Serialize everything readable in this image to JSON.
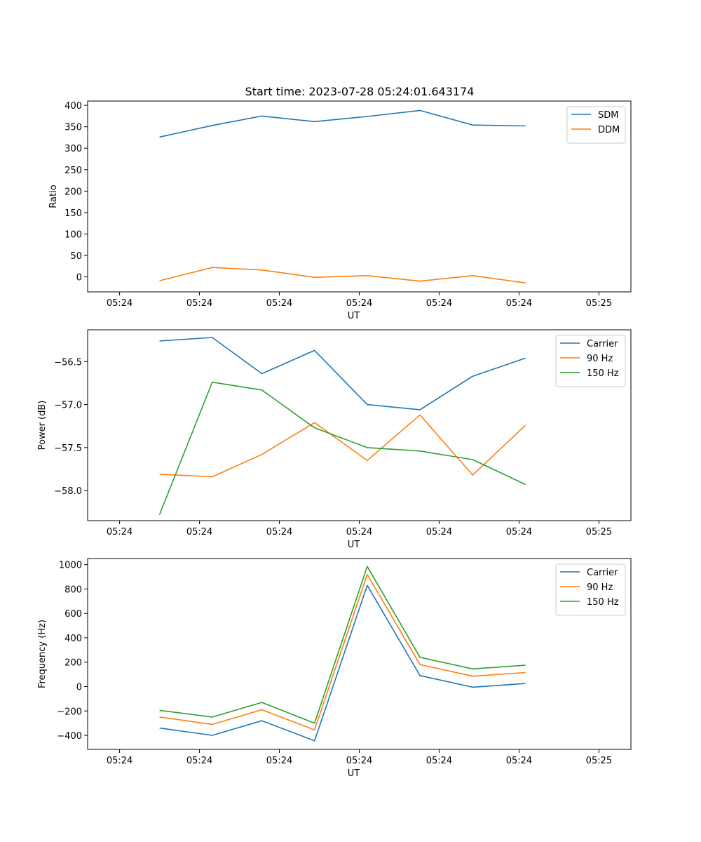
{
  "figure": {
    "title": "Start time: 2023-07-28 05:24:01.643174"
  },
  "colors": {
    "c0": "#1f77b4",
    "c1": "#ff7f0e",
    "c2": "#2ca02c"
  },
  "chart_data": [
    {
      "type": "line",
      "title": "Start time: 2023-07-28 05:24:01.643174",
      "xlabel": "UT",
      "ylabel": "Ratio",
      "xlim": [
        -0.35,
        1.35
      ],
      "x_ticks": [
        -0.25,
        0,
        0.25,
        0.5,
        0.75,
        1,
        1.25
      ],
      "x_tick_labels": [
        "05:24",
        "05:24",
        "05:24",
        "05:24",
        "05:24",
        "05:24",
        "05:25"
      ],
      "ylim": [
        -35,
        410
      ],
      "y_ticks": [
        0,
        50,
        100,
        150,
        200,
        250,
        300,
        350,
        400
      ],
      "y_tick_labels": [
        "0",
        "50",
        "100",
        "150",
        "200",
        "250",
        "300",
        "350",
        "400"
      ],
      "legend": "top-right",
      "x": [
        -0.125,
        0.04,
        0.195,
        0.36,
        0.525,
        0.69,
        0.855,
        1.02
      ],
      "series": [
        {
          "name": "SDM",
          "color": "#1f77b4",
          "values": [
            326,
            353,
            375,
            362,
            374,
            388,
            354,
            352
          ]
        },
        {
          "name": "DDM",
          "color": "#ff7f0e",
          "values": [
            -9,
            22,
            16,
            -1,
            3,
            -10,
            3,
            -14
          ]
        }
      ]
    },
    {
      "type": "line",
      "title": "",
      "xlabel": "UT",
      "ylabel": "Power (dB)",
      "xlim": [
        -0.35,
        1.35
      ],
      "x_ticks": [
        -0.25,
        0,
        0.25,
        0.5,
        0.75,
        1,
        1.25
      ],
      "x_tick_labels": [
        "05:24",
        "05:24",
        "05:24",
        "05:24",
        "05:24",
        "05:24",
        "05:25"
      ],
      "ylim": [
        -58.35,
        -56.13
      ],
      "y_ticks": [
        -58.0,
        -57.5,
        -57.0,
        -56.5
      ],
      "y_tick_labels": [
        "−58.0",
        "−57.5",
        "−57.0",
        "−56.5"
      ],
      "legend": "top-right",
      "x": [
        -0.125,
        0.04,
        0.195,
        0.36,
        0.525,
        0.69,
        0.855,
        1.02
      ],
      "series": [
        {
          "name": "Carrier",
          "color": "#1f77b4",
          "values": [
            -56.26,
            -56.22,
            -56.64,
            -56.37,
            -57.0,
            -57.06,
            -56.67,
            -56.46
          ]
        },
        {
          "name": "90 Hz",
          "color": "#ff7f0e",
          "values": [
            -57.81,
            -57.84,
            -57.58,
            -57.21,
            -57.65,
            -57.12,
            -57.82,
            -57.24
          ]
        },
        {
          "name": "150 Hz",
          "color": "#2ca02c",
          "values": [
            -58.28,
            -56.74,
            -56.83,
            -57.27,
            -57.5,
            -57.54,
            -57.64,
            -57.93
          ]
        }
      ]
    },
    {
      "type": "line",
      "title": "",
      "xlabel": "UT",
      "ylabel": "Frequency (Hz)",
      "xlim": [
        -0.35,
        1.35
      ],
      "x_ticks": [
        -0.25,
        0,
        0.25,
        0.5,
        0.75,
        1,
        1.25
      ],
      "x_tick_labels": [
        "05:24",
        "05:24",
        "05:24",
        "05:24",
        "05:24",
        "05:24",
        "05:25"
      ],
      "ylim": [
        -515,
        1050
      ],
      "y_ticks": [
        -400,
        -200,
        0,
        200,
        400,
        600,
        800,
        1000
      ],
      "y_tick_labels": [
        "−400",
        "−200",
        "0",
        "200",
        "400",
        "600",
        "800",
        "1000"
      ],
      "legend": "top-right",
      "x": [
        -0.125,
        0.04,
        0.195,
        0.36,
        0.525,
        0.69,
        0.855,
        1.02
      ],
      "series": [
        {
          "name": "Carrier",
          "color": "#1f77b4",
          "values": [
            -340,
            -400,
            -280,
            -445,
            830,
            90,
            -5,
            25
          ]
        },
        {
          "name": "90 Hz",
          "color": "#ff7f0e",
          "values": [
            -250,
            -310,
            -190,
            -355,
            920,
            180,
            85,
            115
          ]
        },
        {
          "name": "150 Hz",
          "color": "#2ca02c",
          "values": [
            -195,
            -250,
            -130,
            -300,
            985,
            240,
            145,
            175
          ]
        }
      ]
    }
  ]
}
